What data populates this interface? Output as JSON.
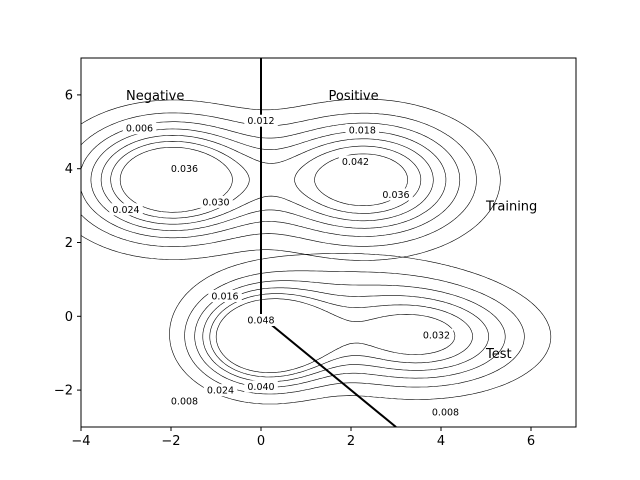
{
  "chart_data": {
    "type": "contour",
    "xlim": [
      -4,
      7
    ],
    "ylim": [
      -3,
      7
    ],
    "xticks": [
      -4,
      -2,
      0,
      2,
      4,
      6
    ],
    "yticks": [
      -2,
      0,
      2,
      4,
      6
    ],
    "grid": false,
    "annotations": [
      {
        "text": "Negative",
        "x": -3.0,
        "y": 6.0
      },
      {
        "text": "Positive",
        "x": 1.5,
        "y": 6.0
      },
      {
        "text": "Training",
        "x": 5.0,
        "y": 3.0
      },
      {
        "text": "Test",
        "x": 5.0,
        "y": -1.0
      }
    ],
    "decision_boundary": [
      [
        0,
        7
      ],
      [
        0,
        0
      ],
      [
        3,
        -3
      ]
    ],
    "training_density": {
      "components": [
        {
          "mean": [
            -2.0,
            3.7
          ],
          "sigma": [
            1.3,
            1.0
          ],
          "weight": 0.5
        },
        {
          "mean": [
            2.3,
            3.7
          ],
          "sigma": [
            1.45,
            1.05
          ],
          "weight": 0.5
        }
      ],
      "levels": [
        0.006,
        0.012,
        0.018,
        0.024,
        0.03,
        0.036,
        0.042
      ],
      "labels": [
        {
          "text": "0.006",
          "x": -2.7,
          "y": 5.1
        },
        {
          "text": "0.012",
          "x": 0.0,
          "y": 5.3
        },
        {
          "text": "0.018",
          "x": 2.25,
          "y": 5.05
        },
        {
          "text": "0.036",
          "x": -1.7,
          "y": 4.0
        },
        {
          "text": "0.042",
          "x": 2.1,
          "y": 4.2
        },
        {
          "text": "0.036",
          "x": 3.0,
          "y": 3.3
        },
        {
          "text": "0.024",
          "x": -3.0,
          "y": 2.9
        },
        {
          "text": "0.030",
          "x": -1.0,
          "y": 3.1
        }
      ]
    },
    "test_density": {
      "components": [
        {
          "mean": [
            0.1,
            -0.6
          ],
          "sigma": [
            0.95,
            0.8
          ],
          "weight": 0.42
        },
        {
          "mean": [
            3.5,
            -0.6
          ],
          "sigma": [
            1.5,
            0.85
          ],
          "weight": 0.42
        },
        {
          "mean": [
            1.8,
            0.6
          ],
          "sigma": [
            1.9,
            0.9
          ],
          "weight": 0.16
        }
      ],
      "levels": [
        0.008,
        0.016,
        0.024,
        0.032,
        0.04,
        0.048
      ],
      "labels": [
        {
          "text": "0.016",
          "x": -0.8,
          "y": 0.55
        },
        {
          "text": "0.048",
          "x": 0.0,
          "y": -0.1
        },
        {
          "text": "0.032",
          "x": 3.9,
          "y": -0.5
        },
        {
          "text": "0.024",
          "x": -0.9,
          "y": -2.0
        },
        {
          "text": "0.040",
          "x": 0.0,
          "y": -1.9
        },
        {
          "text": "0.008",
          "x": -1.7,
          "y": -2.3
        },
        {
          "text": "0.008",
          "x": 4.1,
          "y": -2.6
        }
      ]
    }
  }
}
